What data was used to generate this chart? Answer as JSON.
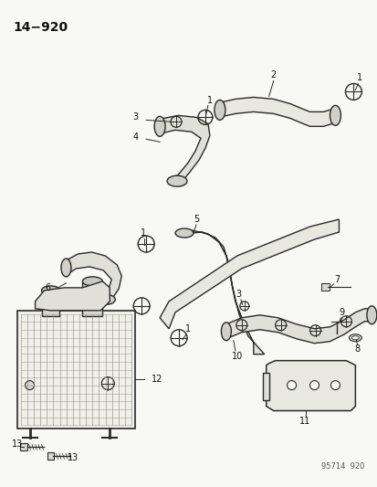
{
  "title": "14−920",
  "footer": "95714  920",
  "bg_color": "#f8f8f4",
  "line_color": "#2a2a2a",
  "text_color": "#111111",
  "fig_width": 4.14,
  "fig_height": 5.33,
  "dpi": 100
}
